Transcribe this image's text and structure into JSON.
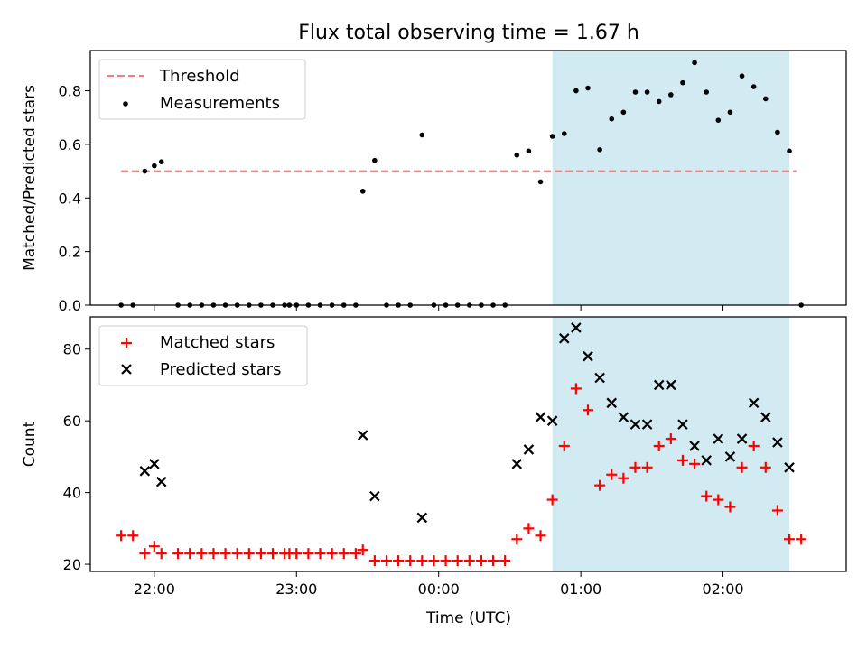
{
  "chart_data": [
    {
      "type": "scatter",
      "title": "Flux total observing time = 1.67 h",
      "ylabel": "Matched/Predicted stars",
      "ylim": [
        0,
        0.95
      ],
      "yticks": [
        "0.0",
        "0.2",
        "0.4",
        "0.6",
        "0.8"
      ],
      "xlim": [
        "21:33",
        "02:52"
      ],
      "xticks": [
        "22:00",
        "23:00",
        "00:00",
        "01:00",
        "02:00"
      ],
      "x_tick_labels_shown": false,
      "shaded_interval": {
        "start": "00:48",
        "end": "02:28",
        "color": "#add8e6"
      },
      "threshold": {
        "name": "Threshold",
        "value": 0.5,
        "from": "21:46",
        "to": "02:31",
        "color": "#f08080",
        "style": "dashed"
      },
      "legend": {
        "position": "upper-left",
        "entries": [
          "Threshold",
          "Measurements"
        ]
      },
      "series": [
        {
          "name": "Measurements",
          "marker": "dot",
          "color": "#000000",
          "points": [
            [
              "21:46",
              0
            ],
            [
              "21:51",
              0
            ],
            [
              "21:56",
              0.5
            ],
            [
              "22:00",
              0.52
            ],
            [
              "22:03",
              0.535
            ],
            [
              "22:10",
              0
            ],
            [
              "22:15",
              0
            ],
            [
              "22:20",
              0
            ],
            [
              "22:25",
              0
            ],
            [
              "22:30",
              0
            ],
            [
              "22:35",
              0
            ],
            [
              "22:40",
              0
            ],
            [
              "22:45",
              0
            ],
            [
              "22:50",
              0
            ],
            [
              "22:55",
              0
            ],
            [
              "22:57",
              0
            ],
            [
              "23:00",
              0
            ],
            [
              "23:05",
              0
            ],
            [
              "23:10",
              0
            ],
            [
              "23:15",
              0
            ],
            [
              "23:20",
              0
            ],
            [
              "23:25",
              0
            ],
            [
              "23:28",
              0.425
            ],
            [
              "23:33",
              0.54
            ],
            [
              "23:38",
              0
            ],
            [
              "23:43",
              0
            ],
            [
              "23:48",
              0
            ],
            [
              "23:53",
              0.635
            ],
            [
              "23:58",
              0
            ],
            [
              "00:03",
              0
            ],
            [
              "00:08",
              0
            ],
            [
              "00:13",
              0
            ],
            [
              "00:18",
              0
            ],
            [
              "00:23",
              0
            ],
            [
              "00:28",
              0
            ],
            [
              "00:33",
              0.56
            ],
            [
              "00:38",
              0.575
            ],
            [
              "00:43",
              0.46
            ],
            [
              "00:48",
              0.63
            ],
            [
              "00:53",
              0.64
            ],
            [
              "00:58",
              0.8
            ],
            [
              "01:03",
              0.81
            ],
            [
              "01:08",
              0.58
            ],
            [
              "01:13",
              0.695
            ],
            [
              "01:18",
              0.72
            ],
            [
              "01:23",
              0.795
            ],
            [
              "01:28",
              0.795
            ],
            [
              "01:33",
              0.76
            ],
            [
              "01:38",
              0.785
            ],
            [
              "01:43",
              0.83
            ],
            [
              "01:48",
              0.905
            ],
            [
              "01:53",
              0.795
            ],
            [
              "01:58",
              0.69
            ],
            [
              "02:03",
              0.72
            ],
            [
              "02:08",
              0.855
            ],
            [
              "02:13",
              0.815
            ],
            [
              "02:18",
              0.77
            ],
            [
              "02:23",
              0.645
            ],
            [
              "02:28",
              0.575
            ],
            [
              "02:33",
              0
            ]
          ]
        }
      ]
    },
    {
      "type": "scatter",
      "xlabel": "Time (UTC)",
      "ylabel": "Count",
      "ylim": [
        18,
        89
      ],
      "yticks": [
        "20",
        "40",
        "60",
        "80"
      ],
      "xlim": [
        "21:33",
        "02:52"
      ],
      "xticks": [
        "22:00",
        "23:00",
        "00:00",
        "01:00",
        "02:00"
      ],
      "shaded_interval": {
        "start": "00:48",
        "end": "02:28",
        "color": "#add8e6"
      },
      "legend": {
        "position": "upper-left",
        "entries": [
          "Matched stars",
          "Predicted stars"
        ]
      },
      "series": [
        {
          "name": "Matched stars",
          "marker": "plus",
          "color": "#ff0000",
          "points": [
            [
              "21:46",
              28
            ],
            [
              "21:51",
              28
            ],
            [
              "21:56",
              23
            ],
            [
              "22:00",
              25
            ],
            [
              "22:03",
              23
            ],
            [
              "22:10",
              23
            ],
            [
              "22:15",
              23
            ],
            [
              "22:20",
              23
            ],
            [
              "22:25",
              23
            ],
            [
              "22:30",
              23
            ],
            [
              "22:35",
              23
            ],
            [
              "22:40",
              23
            ],
            [
              "22:45",
              23
            ],
            [
              "22:50",
              23
            ],
            [
              "22:55",
              23
            ],
            [
              "22:57",
              23
            ],
            [
              "23:00",
              23
            ],
            [
              "23:05",
              23
            ],
            [
              "23:10",
              23
            ],
            [
              "23:15",
              23
            ],
            [
              "23:20",
              23
            ],
            [
              "23:25",
              23
            ],
            [
              "23:28",
              24
            ],
            [
              "23:33",
              21
            ],
            [
              "23:38",
              21
            ],
            [
              "23:43",
              21
            ],
            [
              "23:48",
              21
            ],
            [
              "23:53",
              21
            ],
            [
              "23:58",
              21
            ],
            [
              "00:03",
              21
            ],
            [
              "00:08",
              21
            ],
            [
              "00:13",
              21
            ],
            [
              "00:18",
              21
            ],
            [
              "00:23",
              21
            ],
            [
              "00:28",
              21
            ],
            [
              "00:33",
              27
            ],
            [
              "00:38",
              30
            ],
            [
              "00:43",
              28
            ],
            [
              "00:48",
              38
            ],
            [
              "00:53",
              53
            ],
            [
              "00:58",
              69
            ],
            [
              "01:03",
              63
            ],
            [
              "01:08",
              42
            ],
            [
              "01:13",
              45
            ],
            [
              "01:18",
              44
            ],
            [
              "01:23",
              47
            ],
            [
              "01:28",
              47
            ],
            [
              "01:33",
              53
            ],
            [
              "01:38",
              55
            ],
            [
              "01:43",
              49
            ],
            [
              "01:48",
              48
            ],
            [
              "01:53",
              39
            ],
            [
              "01:58",
              38
            ],
            [
              "02:03",
              36
            ],
            [
              "02:08",
              47
            ],
            [
              "02:13",
              53
            ],
            [
              "02:18",
              47
            ],
            [
              "02:23",
              35
            ],
            [
              "02:28",
              27
            ],
            [
              "02:33",
              27
            ]
          ]
        },
        {
          "name": "Predicted stars",
          "marker": "x",
          "color": "#000000",
          "points": [
            [
              "21:56",
              46
            ],
            [
              "22:00",
              48
            ],
            [
              "22:03",
              43
            ],
            [
              "23:28",
              56
            ],
            [
              "23:33",
              39
            ],
            [
              "23:53",
              33
            ],
            [
              "00:33",
              48
            ],
            [
              "00:38",
              52
            ],
            [
              "00:43",
              61
            ],
            [
              "00:48",
              60
            ],
            [
              "00:53",
              83
            ],
            [
              "00:58",
              86
            ],
            [
              "01:03",
              78
            ],
            [
              "01:08",
              72
            ],
            [
              "01:13",
              65
            ],
            [
              "01:18",
              61
            ],
            [
              "01:23",
              59
            ],
            [
              "01:28",
              59
            ],
            [
              "01:33",
              70
            ],
            [
              "01:38",
              70
            ],
            [
              "01:43",
              59
            ],
            [
              "01:48",
              53
            ],
            [
              "01:53",
              49
            ],
            [
              "01:58",
              55
            ],
            [
              "02:03",
              50
            ],
            [
              "02:08",
              55
            ],
            [
              "02:13",
              65
            ],
            [
              "02:18",
              61
            ],
            [
              "02:23",
              54
            ],
            [
              "02:28",
              47
            ]
          ]
        }
      ]
    }
  ]
}
